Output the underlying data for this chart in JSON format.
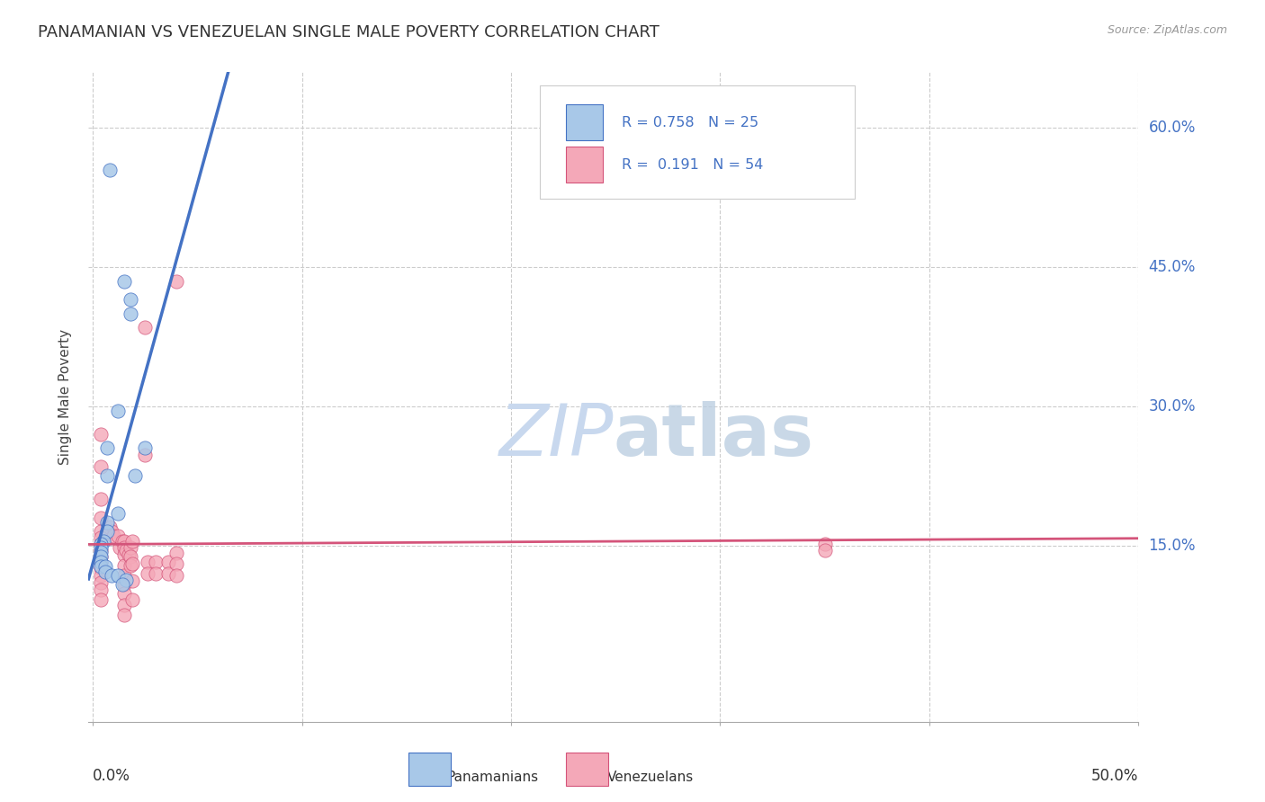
{
  "title": "PANAMANIAN VS VENEZUELAN SINGLE MALE POVERTY CORRELATION CHART",
  "source": "Source: ZipAtlas.com",
  "ylabel": "Single Male Poverty",
  "ytick_labels": [
    "15.0%",
    "30.0%",
    "45.0%",
    "60.0%"
  ],
  "ytick_values": [
    0.15,
    0.3,
    0.45,
    0.6
  ],
  "xlim": [
    -0.002,
    0.5
  ],
  "ylim": [
    -0.04,
    0.66
  ],
  "panama_scatter_color": "#a8c8e8",
  "venezuela_scatter_color": "#f4a8b8",
  "panama_line_color": "#4472c4",
  "venezuela_line_color": "#d4547a",
  "watermark_zip_color": "#c8d8ee",
  "watermark_atlas_color": "#b8cce0",
  "background_color": "#ffffff",
  "grid_color": "#cccccc",
  "panama_points": [
    [
      0.008,
      0.555
    ],
    [
      0.015,
      0.435
    ],
    [
      0.018,
      0.415
    ],
    [
      0.018,
      0.4
    ],
    [
      0.012,
      0.295
    ],
    [
      0.02,
      0.225
    ],
    [
      0.025,
      0.255
    ],
    [
      0.007,
      0.255
    ],
    [
      0.007,
      0.225
    ],
    [
      0.012,
      0.185
    ],
    [
      0.007,
      0.175
    ],
    [
      0.007,
      0.165
    ],
    [
      0.005,
      0.155
    ],
    [
      0.004,
      0.152
    ],
    [
      0.004,
      0.148
    ],
    [
      0.004,
      0.143
    ],
    [
      0.004,
      0.138
    ],
    [
      0.004,
      0.132
    ],
    [
      0.004,
      0.127
    ],
    [
      0.006,
      0.127
    ],
    [
      0.006,
      0.122
    ],
    [
      0.009,
      0.118
    ],
    [
      0.012,
      0.118
    ],
    [
      0.016,
      0.113
    ],
    [
      0.014,
      0.108
    ]
  ],
  "venezuela_points": [
    [
      0.004,
      0.27
    ],
    [
      0.004,
      0.235
    ],
    [
      0.008,
      0.17
    ],
    [
      0.009,
      0.165
    ],
    [
      0.01,
      0.16
    ],
    [
      0.012,
      0.16
    ],
    [
      0.013,
      0.148
    ],
    [
      0.014,
      0.155
    ],
    [
      0.015,
      0.155
    ],
    [
      0.015,
      0.148
    ],
    [
      0.015,
      0.14
    ],
    [
      0.015,
      0.128
    ],
    [
      0.015,
      0.118
    ],
    [
      0.015,
      0.108
    ],
    [
      0.015,
      0.098
    ],
    [
      0.015,
      0.086
    ],
    [
      0.015,
      0.075
    ],
    [
      0.016,
      0.145
    ],
    [
      0.017,
      0.14
    ],
    [
      0.018,
      0.148
    ],
    [
      0.018,
      0.138
    ],
    [
      0.018,
      0.128
    ],
    [
      0.019,
      0.155
    ],
    [
      0.019,
      0.13
    ],
    [
      0.019,
      0.112
    ],
    [
      0.019,
      0.092
    ],
    [
      0.004,
      0.2
    ],
    [
      0.004,
      0.18
    ],
    [
      0.004,
      0.165
    ],
    [
      0.004,
      0.158
    ],
    [
      0.004,
      0.152
    ],
    [
      0.004,
      0.145
    ],
    [
      0.004,
      0.138
    ],
    [
      0.004,
      0.132
    ],
    [
      0.004,
      0.125
    ],
    [
      0.004,
      0.118
    ],
    [
      0.004,
      0.11
    ],
    [
      0.004,
      0.102
    ],
    [
      0.004,
      0.092
    ],
    [
      0.025,
      0.385
    ],
    [
      0.025,
      0.248
    ],
    [
      0.026,
      0.132
    ],
    [
      0.026,
      0.12
    ],
    [
      0.03,
      0.132
    ],
    [
      0.03,
      0.12
    ],
    [
      0.036,
      0.132
    ],
    [
      0.036,
      0.12
    ],
    [
      0.04,
      0.435
    ],
    [
      0.04,
      0.142
    ],
    [
      0.04,
      0.13
    ],
    [
      0.04,
      0.118
    ],
    [
      0.35,
      0.152
    ],
    [
      0.35,
      0.145
    ]
  ]
}
